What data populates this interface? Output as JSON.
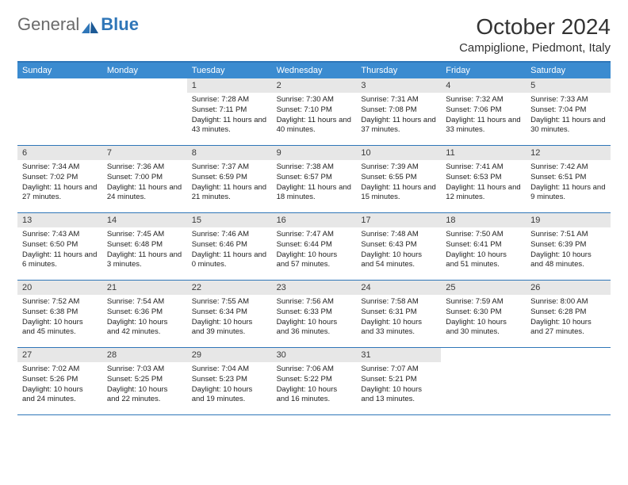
{
  "brand": {
    "part1": "General",
    "part2": "Blue"
  },
  "title": "October 2024",
  "location": "Campiglione, Piedmont, Italy",
  "colors": {
    "header_bg": "#3b8bd0",
    "rule": "#2f76b8",
    "daynum_bg": "#e7e7e7",
    "text": "#222222"
  },
  "weekdays": [
    "Sunday",
    "Monday",
    "Tuesday",
    "Wednesday",
    "Thursday",
    "Friday",
    "Saturday"
  ],
  "weeks": [
    [
      {
        "n": "",
        "sunrise": "",
        "sunset": "",
        "daylight": ""
      },
      {
        "n": "",
        "sunrise": "",
        "sunset": "",
        "daylight": ""
      },
      {
        "n": "1",
        "sunrise": "Sunrise: 7:28 AM",
        "sunset": "Sunset: 7:11 PM",
        "daylight": "Daylight: 11 hours and 43 minutes."
      },
      {
        "n": "2",
        "sunrise": "Sunrise: 7:30 AM",
        "sunset": "Sunset: 7:10 PM",
        "daylight": "Daylight: 11 hours and 40 minutes."
      },
      {
        "n": "3",
        "sunrise": "Sunrise: 7:31 AM",
        "sunset": "Sunset: 7:08 PM",
        "daylight": "Daylight: 11 hours and 37 minutes."
      },
      {
        "n": "4",
        "sunrise": "Sunrise: 7:32 AM",
        "sunset": "Sunset: 7:06 PM",
        "daylight": "Daylight: 11 hours and 33 minutes."
      },
      {
        "n": "5",
        "sunrise": "Sunrise: 7:33 AM",
        "sunset": "Sunset: 7:04 PM",
        "daylight": "Daylight: 11 hours and 30 minutes."
      }
    ],
    [
      {
        "n": "6",
        "sunrise": "Sunrise: 7:34 AM",
        "sunset": "Sunset: 7:02 PM",
        "daylight": "Daylight: 11 hours and 27 minutes."
      },
      {
        "n": "7",
        "sunrise": "Sunrise: 7:36 AM",
        "sunset": "Sunset: 7:00 PM",
        "daylight": "Daylight: 11 hours and 24 minutes."
      },
      {
        "n": "8",
        "sunrise": "Sunrise: 7:37 AM",
        "sunset": "Sunset: 6:59 PM",
        "daylight": "Daylight: 11 hours and 21 minutes."
      },
      {
        "n": "9",
        "sunrise": "Sunrise: 7:38 AM",
        "sunset": "Sunset: 6:57 PM",
        "daylight": "Daylight: 11 hours and 18 minutes."
      },
      {
        "n": "10",
        "sunrise": "Sunrise: 7:39 AM",
        "sunset": "Sunset: 6:55 PM",
        "daylight": "Daylight: 11 hours and 15 minutes."
      },
      {
        "n": "11",
        "sunrise": "Sunrise: 7:41 AM",
        "sunset": "Sunset: 6:53 PM",
        "daylight": "Daylight: 11 hours and 12 minutes."
      },
      {
        "n": "12",
        "sunrise": "Sunrise: 7:42 AM",
        "sunset": "Sunset: 6:51 PM",
        "daylight": "Daylight: 11 hours and 9 minutes."
      }
    ],
    [
      {
        "n": "13",
        "sunrise": "Sunrise: 7:43 AM",
        "sunset": "Sunset: 6:50 PM",
        "daylight": "Daylight: 11 hours and 6 minutes."
      },
      {
        "n": "14",
        "sunrise": "Sunrise: 7:45 AM",
        "sunset": "Sunset: 6:48 PM",
        "daylight": "Daylight: 11 hours and 3 minutes."
      },
      {
        "n": "15",
        "sunrise": "Sunrise: 7:46 AM",
        "sunset": "Sunset: 6:46 PM",
        "daylight": "Daylight: 11 hours and 0 minutes."
      },
      {
        "n": "16",
        "sunrise": "Sunrise: 7:47 AM",
        "sunset": "Sunset: 6:44 PM",
        "daylight": "Daylight: 10 hours and 57 minutes."
      },
      {
        "n": "17",
        "sunrise": "Sunrise: 7:48 AM",
        "sunset": "Sunset: 6:43 PM",
        "daylight": "Daylight: 10 hours and 54 minutes."
      },
      {
        "n": "18",
        "sunrise": "Sunrise: 7:50 AM",
        "sunset": "Sunset: 6:41 PM",
        "daylight": "Daylight: 10 hours and 51 minutes."
      },
      {
        "n": "19",
        "sunrise": "Sunrise: 7:51 AM",
        "sunset": "Sunset: 6:39 PM",
        "daylight": "Daylight: 10 hours and 48 minutes."
      }
    ],
    [
      {
        "n": "20",
        "sunrise": "Sunrise: 7:52 AM",
        "sunset": "Sunset: 6:38 PM",
        "daylight": "Daylight: 10 hours and 45 minutes."
      },
      {
        "n": "21",
        "sunrise": "Sunrise: 7:54 AM",
        "sunset": "Sunset: 6:36 PM",
        "daylight": "Daylight: 10 hours and 42 minutes."
      },
      {
        "n": "22",
        "sunrise": "Sunrise: 7:55 AM",
        "sunset": "Sunset: 6:34 PM",
        "daylight": "Daylight: 10 hours and 39 minutes."
      },
      {
        "n": "23",
        "sunrise": "Sunrise: 7:56 AM",
        "sunset": "Sunset: 6:33 PM",
        "daylight": "Daylight: 10 hours and 36 minutes."
      },
      {
        "n": "24",
        "sunrise": "Sunrise: 7:58 AM",
        "sunset": "Sunset: 6:31 PM",
        "daylight": "Daylight: 10 hours and 33 minutes."
      },
      {
        "n": "25",
        "sunrise": "Sunrise: 7:59 AM",
        "sunset": "Sunset: 6:30 PM",
        "daylight": "Daylight: 10 hours and 30 minutes."
      },
      {
        "n": "26",
        "sunrise": "Sunrise: 8:00 AM",
        "sunset": "Sunset: 6:28 PM",
        "daylight": "Daylight: 10 hours and 27 minutes."
      }
    ],
    [
      {
        "n": "27",
        "sunrise": "Sunrise: 7:02 AM",
        "sunset": "Sunset: 5:26 PM",
        "daylight": "Daylight: 10 hours and 24 minutes."
      },
      {
        "n": "28",
        "sunrise": "Sunrise: 7:03 AM",
        "sunset": "Sunset: 5:25 PM",
        "daylight": "Daylight: 10 hours and 22 minutes."
      },
      {
        "n": "29",
        "sunrise": "Sunrise: 7:04 AM",
        "sunset": "Sunset: 5:23 PM",
        "daylight": "Daylight: 10 hours and 19 minutes."
      },
      {
        "n": "30",
        "sunrise": "Sunrise: 7:06 AM",
        "sunset": "Sunset: 5:22 PM",
        "daylight": "Daylight: 10 hours and 16 minutes."
      },
      {
        "n": "31",
        "sunrise": "Sunrise: 7:07 AM",
        "sunset": "Sunset: 5:21 PM",
        "daylight": "Daylight: 10 hours and 13 minutes."
      },
      {
        "n": "",
        "sunrise": "",
        "sunset": "",
        "daylight": ""
      },
      {
        "n": "",
        "sunrise": "",
        "sunset": "",
        "daylight": ""
      }
    ]
  ]
}
